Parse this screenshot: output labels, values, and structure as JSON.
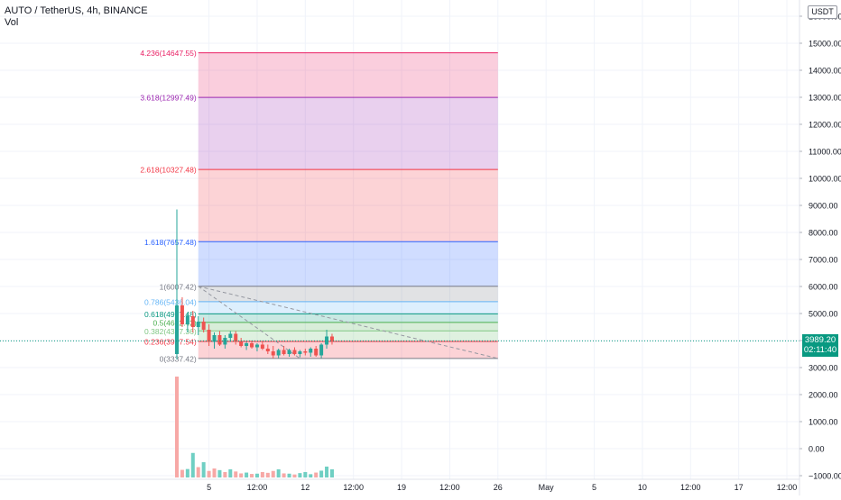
{
  "header": {
    "symbol_line": "AUTO / TetherUS, 4h, BINANCE",
    "volume_label": "Vol"
  },
  "currency_badge": "USDT",
  "last_price": {
    "value": "3989.20",
    "countdown": "02:11:40",
    "color": "#089981"
  },
  "colors": {
    "up": "#26a69a",
    "down": "#ef5350",
    "grid": "#f0f3fa",
    "vol_up": "#6fcfc3",
    "vol_down": "#f7a8a6"
  },
  "chart_data": {
    "type": "candlestick",
    "y_axis": {
      "ticks": [
        {
          "value": -1000,
          "label": "−1000.00"
        },
        {
          "value": 0,
          "label": "0.00"
        },
        {
          "value": 1000,
          "label": "1000.00"
        },
        {
          "value": 2000,
          "label": "2000.00"
        },
        {
          "value": 3000,
          "label": "3000.00"
        },
        {
          "value": 4000,
          "label": "4000.00"
        },
        {
          "value": 5000,
          "label": "5000.00"
        },
        {
          "value": 6000,
          "label": "6000.00"
        },
        {
          "value": 7000,
          "label": "7000.00"
        },
        {
          "value": 8000,
          "label": "8000.00"
        },
        {
          "value": 9000,
          "label": "9000.00"
        },
        {
          "value": 10000,
          "label": "10000.00"
        },
        {
          "value": 11000,
          "label": "11000.00"
        },
        {
          "value": 12000,
          "label": "12000.00"
        },
        {
          "value": 13000,
          "label": "13000.00"
        },
        {
          "value": 14000,
          "label": "14000.00"
        },
        {
          "value": 15000,
          "label": "15000.00"
        },
        {
          "value": 16000,
          "label": "16000.00"
        }
      ],
      "range": [
        -1100,
        16400
      ]
    },
    "x_axis": {
      "ticks": [
        {
          "bar": 6,
          "label": "5"
        },
        {
          "bar": 15,
          "label": "12:00"
        },
        {
          "bar": 24,
          "label": "12"
        },
        {
          "bar": 33,
          "label": "12:00"
        },
        {
          "bar": 42,
          "label": "19"
        },
        {
          "bar": 51,
          "label": "12:00"
        },
        {
          "bar": 60,
          "label": "26"
        },
        {
          "bar": 69,
          "label": "May"
        },
        {
          "bar": 78,
          "label": "5"
        },
        {
          "bar": 87,
          "label": "10"
        },
        {
          "bar": 96,
          "label": "12:00"
        },
        {
          "bar": 105,
          "label": "17"
        },
        {
          "bar": 114,
          "label": "12:00"
        }
      ],
      "bar_range": [
        -0.5,
        117
      ]
    },
    "candles": [
      {
        "bar": 0,
        "open": 3500,
        "high": 8850,
        "low": 3300,
        "close": 5300
      },
      {
        "bar": 1,
        "open": 5300,
        "high": 5600,
        "low": 4500,
        "close": 4600
      },
      {
        "bar": 2,
        "open": 4600,
        "high": 5000,
        "low": 4300,
        "close": 4900
      },
      {
        "bar": 3,
        "open": 4900,
        "high": 5100,
        "low": 4300,
        "close": 4500
      },
      {
        "bar": 4,
        "open": 4500,
        "high": 4900,
        "low": 4200,
        "close": 4700
      },
      {
        "bar": 5,
        "open": 4700,
        "high": 4850,
        "low": 4300,
        "close": 4400
      },
      {
        "bar": 6,
        "open": 4400,
        "high": 4600,
        "low": 3800,
        "close": 3950
      },
      {
        "bar": 7,
        "open": 3950,
        "high": 4300,
        "low": 3700,
        "close": 4200
      },
      {
        "bar": 8,
        "open": 4200,
        "high": 4350,
        "low": 3800,
        "close": 3850
      },
      {
        "bar": 9,
        "open": 3850,
        "high": 4200,
        "low": 3700,
        "close": 4100
      },
      {
        "bar": 10,
        "open": 4100,
        "high": 4350,
        "low": 3950,
        "close": 4250
      },
      {
        "bar": 11,
        "open": 4250,
        "high": 4350,
        "low": 3850,
        "close": 3950
      },
      {
        "bar": 12,
        "open": 3950,
        "high": 4100,
        "low": 3750,
        "close": 3800
      },
      {
        "bar": 13,
        "open": 3800,
        "high": 3950,
        "low": 3650,
        "close": 3900
      },
      {
        "bar": 14,
        "open": 3900,
        "high": 4000,
        "low": 3700,
        "close": 3750
      },
      {
        "bar": 15,
        "open": 3750,
        "high": 3900,
        "low": 3600,
        "close": 3850
      },
      {
        "bar": 16,
        "open": 3850,
        "high": 3950,
        "low": 3650,
        "close": 3700
      },
      {
        "bar": 17,
        "open": 3700,
        "high": 3850,
        "low": 3500,
        "close": 3600
      },
      {
        "bar": 18,
        "open": 3600,
        "high": 3800,
        "low": 3337,
        "close": 3450
      },
      {
        "bar": 19,
        "open": 3450,
        "high": 3700,
        "low": 3350,
        "close": 3650
      },
      {
        "bar": 20,
        "open": 3650,
        "high": 3800,
        "low": 3450,
        "close": 3500
      },
      {
        "bar": 21,
        "open": 3500,
        "high": 3700,
        "low": 3400,
        "close": 3650
      },
      {
        "bar": 22,
        "open": 3650,
        "high": 3750,
        "low": 3450,
        "close": 3500
      },
      {
        "bar": 23,
        "open": 3500,
        "high": 3650,
        "low": 3380,
        "close": 3600
      },
      {
        "bar": 24,
        "open": 3600,
        "high": 3700,
        "low": 3450,
        "close": 3550
      },
      {
        "bar": 25,
        "open": 3550,
        "high": 3750,
        "low": 3400,
        "close": 3700
      },
      {
        "bar": 26,
        "open": 3700,
        "high": 3800,
        "low": 3400,
        "close": 3450
      },
      {
        "bar": 27,
        "open": 3450,
        "high": 3900,
        "low": 3350,
        "close": 3850
      },
      {
        "bar": 28,
        "open": 3850,
        "high": 4400,
        "low": 3700,
        "close": 4150
      },
      {
        "bar": 29,
        "open": 4150,
        "high": 4250,
        "low": 3850,
        "close": 3989
      }
    ],
    "volume": [
      {
        "bar": 0,
        "value": 3700,
        "up": false
      },
      {
        "bar": 1,
        "value": 280,
        "up": false
      },
      {
        "bar": 2,
        "value": 310,
        "up": true
      },
      {
        "bar": 3,
        "value": 900,
        "up": true
      },
      {
        "bar": 4,
        "value": 380,
        "up": false
      },
      {
        "bar": 5,
        "value": 560,
        "up": true
      },
      {
        "bar": 6,
        "value": 240,
        "up": false
      },
      {
        "bar": 7,
        "value": 330,
        "up": false
      },
      {
        "bar": 8,
        "value": 270,
        "up": true
      },
      {
        "bar": 9,
        "value": 200,
        "up": false
      },
      {
        "bar": 10,
        "value": 300,
        "up": true
      },
      {
        "bar": 11,
        "value": 220,
        "up": false
      },
      {
        "bar": 12,
        "value": 150,
        "up": false
      },
      {
        "bar": 13,
        "value": 180,
        "up": true
      },
      {
        "bar": 14,
        "value": 130,
        "up": false
      },
      {
        "bar": 15,
        "value": 140,
        "up": true
      },
      {
        "bar": 16,
        "value": 200,
        "up": false
      },
      {
        "bar": 17,
        "value": 170,
        "up": false
      },
      {
        "bar": 18,
        "value": 240,
        "up": false
      },
      {
        "bar": 19,
        "value": 300,
        "up": true
      },
      {
        "bar": 20,
        "value": 150,
        "up": false
      },
      {
        "bar": 21,
        "value": 140,
        "up": true
      },
      {
        "bar": 22,
        "value": 110,
        "up": false
      },
      {
        "bar": 23,
        "value": 160,
        "up": true
      },
      {
        "bar": 24,
        "value": 200,
        "up": true
      },
      {
        "bar": 25,
        "value": 120,
        "up": true
      },
      {
        "bar": 26,
        "value": 180,
        "up": false
      },
      {
        "bar": 27,
        "value": 250,
        "up": true
      },
      {
        "bar": 28,
        "value": 400,
        "up": true
      },
      {
        "bar": 29,
        "value": 300,
        "up": true
      }
    ],
    "fib_extension": {
      "start_bar": 4,
      "end_bar": 60,
      "trend_line": {
        "from": {
          "bar": 4,
          "value": 6007.42
        },
        "to": {
          "bar": 60,
          "value": 3337.42
        }
      },
      "dashed_line": {
        "from": {
          "bar": 4,
          "value": 6007.42
        },
        "to": {
          "bar": 23,
          "value": 3337.42
        }
      },
      "levels": [
        {
          "ratio": "0",
          "price": 3337.42,
          "label": "0(3337.42)",
          "line": "#787b86",
          "fill": "rgba(242,54,69,0.22)"
        },
        {
          "ratio": "0.236",
          "price": 3967.54,
          "label": "0.236(3967.54)",
          "line": "#f23645",
          "fill": "rgba(129,199,132,0.25)"
        },
        {
          "ratio": "0.382",
          "price": 4357.36,
          "label": "0.382(4357.36)",
          "line": "#81c784",
          "fill": "rgba(76,175,80,0.22)"
        },
        {
          "ratio": "0.5",
          "price": 4672.42,
          "label": "0.5(4672.42)",
          "line": "#4caf50",
          "fill": "rgba(8,153,129,0.22)"
        },
        {
          "ratio": "0.618",
          "price": 4987.48,
          "label": "0.618(4987.48)",
          "line": "#089981",
          "fill": "rgba(100,181,246,0.22)"
        },
        {
          "ratio": "0.786",
          "price": 5436.04,
          "label": "0.786(5436.04)",
          "line": "#64b5f6",
          "fill": "rgba(120,123,134,0.22)"
        },
        {
          "ratio": "1",
          "price": 6007.42,
          "label": "1(6007.42)",
          "line": "#787b86",
          "fill": "rgba(41,98,255,0.22)"
        },
        {
          "ratio": "1.618",
          "price": 7657.48,
          "label": "1.618(7657.48)",
          "line": "#2962ff",
          "fill": "rgba(242,54,69,0.22)"
        },
        {
          "ratio": "2.618",
          "price": 10327.48,
          "label": "2.618(10327.48)",
          "line": "#f23645",
          "fill": "rgba(156,39,176,0.22)"
        },
        {
          "ratio": "3.618",
          "price": 12997.49,
          "label": "3.618(12997.49)",
          "line": "#9c27b0",
          "fill": "rgba(233,30,99,0.22)"
        },
        {
          "ratio": "4.236",
          "price": 14647.55,
          "label": "4.236(14647.55)",
          "line": "#e91e63",
          "fill": "none"
        }
      ]
    }
  }
}
